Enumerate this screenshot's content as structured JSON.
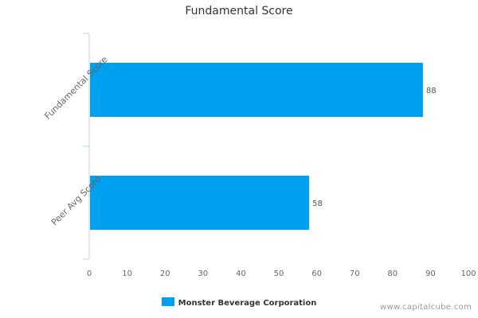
{
  "chart_data": {
    "type": "bar",
    "orientation": "horizontal",
    "title": "Fundamental Score",
    "categories": [
      "Fundamental Score",
      "Peer Avg Score"
    ],
    "series": [
      {
        "name": "Monster Beverage Corporation",
        "values": [
          88,
          58
        ]
      }
    ],
    "xlim": [
      0,
      100
    ],
    "x_ticks": [
      0,
      10,
      20,
      30,
      40,
      50,
      60,
      70,
      80,
      90,
      100
    ],
    "grid": false,
    "legend_position": "bottom-center",
    "bar_color": "#00a0f0",
    "axis_color": "#c0d0e0"
  },
  "legend": {
    "label": "Monster Beverage Corporation"
  },
  "watermark": "www.capitalcube.com"
}
